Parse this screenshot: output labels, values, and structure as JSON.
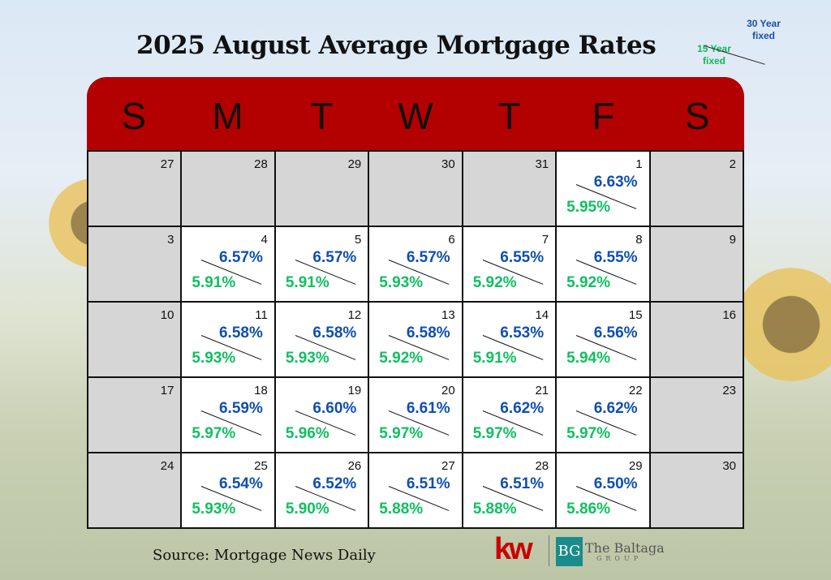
{
  "title": "2025 August Average Mortgage Rates",
  "legend": {
    "rate30": "30 Year fixed",
    "rate15": "15 Year fixed"
  },
  "weekdays": [
    "S",
    "M",
    "T",
    "W",
    "T",
    "F",
    "S"
  ],
  "weeks": [
    [
      {
        "day": "27",
        "gray": true
      },
      {
        "day": "28",
        "gray": true
      },
      {
        "day": "29",
        "gray": true
      },
      {
        "day": "30",
        "gray": true
      },
      {
        "day": "31",
        "gray": true
      },
      {
        "day": "1",
        "r30": "6.63%",
        "r15": "5.95%"
      },
      {
        "day": "2",
        "gray": true
      }
    ],
    [
      {
        "day": "3",
        "gray": true
      },
      {
        "day": "4",
        "r30": "6.57%",
        "r15": "5.91%"
      },
      {
        "day": "5",
        "r30": "6.57%",
        "r15": "5.91%"
      },
      {
        "day": "6",
        "r30": "6.57%",
        "r15": "5.93%"
      },
      {
        "day": "7",
        "r30": "6.55%",
        "r15": "5.92%"
      },
      {
        "day": "8",
        "r30": "6.55%",
        "r15": "5.92%"
      },
      {
        "day": "9",
        "gray": true
      }
    ],
    [
      {
        "day": "10",
        "gray": true
      },
      {
        "day": "11",
        "r30": "6.58%",
        "r15": "5.93%"
      },
      {
        "day": "12",
        "r30": "6.58%",
        "r15": "5.93%"
      },
      {
        "day": "13",
        "r30": "6.58%",
        "r15": "5.92%"
      },
      {
        "day": "14",
        "r30": "6.53%",
        "r15": "5.91%"
      },
      {
        "day": "15",
        "r30": "6.56%",
        "r15": "5.94%"
      },
      {
        "day": "16",
        "gray": true
      }
    ],
    [
      {
        "day": "17",
        "gray": true
      },
      {
        "day": "18",
        "r30": "6.59%",
        "r15": "5.97%"
      },
      {
        "day": "19",
        "r30": "6.60%",
        "r15": "5.96%"
      },
      {
        "day": "20",
        "r30": "6.61%",
        "r15": "5.97%"
      },
      {
        "day": "21",
        "r30": "6.62%",
        "r15": "5.97%"
      },
      {
        "day": "22",
        "r30": "6.62%",
        "r15": "5.97%"
      },
      {
        "day": "23",
        "gray": true
      }
    ],
    [
      {
        "day": "24",
        "gray": true
      },
      {
        "day": "25",
        "r30": "6.54%",
        "r15": "5.93%"
      },
      {
        "day": "26",
        "r30": "6.52%",
        "r15": "5.90%"
      },
      {
        "day": "27",
        "r30": "6.51%",
        "r15": "5.88%"
      },
      {
        "day": "28",
        "r30": "6.51%",
        "r15": "5.88%"
      },
      {
        "day": "29",
        "r30": "6.50%",
        "r15": "5.86%"
      },
      {
        "day": "30",
        "gray": true
      }
    ]
  ],
  "source": "Source: Mortgage News Daily",
  "logos": {
    "kw": "kw",
    "bg": "BG",
    "baltaga": "The Baltaga",
    "group": "GROUP"
  },
  "colors": {
    "header": "#b30000",
    "rate30": "#0f4fb0",
    "rate15": "#10c060"
  }
}
